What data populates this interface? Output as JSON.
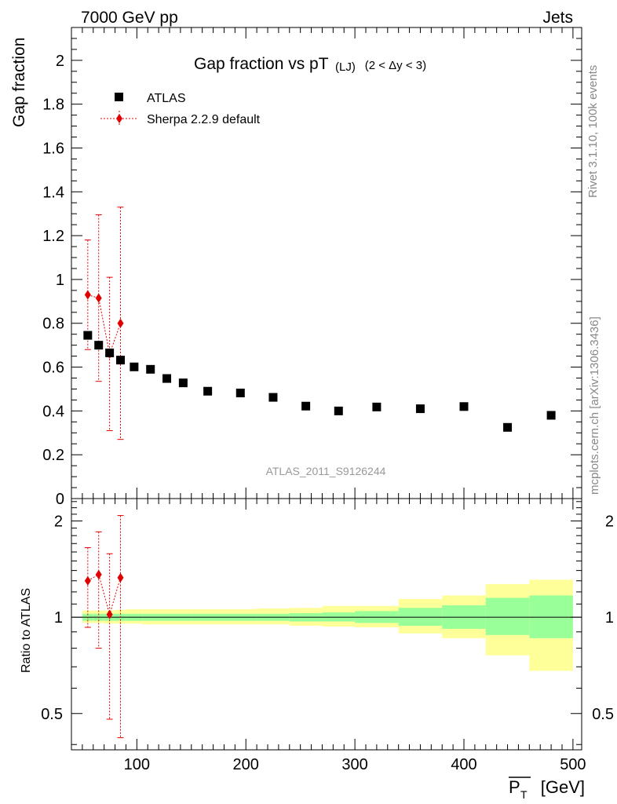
{
  "header": {
    "left": "7000 GeV pp",
    "right": "Jets"
  },
  "side_text": {
    "rivet": "Rivet 3.1.10,  100k events",
    "mcplots": "mcplots.cern.ch [arXiv:1306.3436]"
  },
  "chart_data": {
    "type": "scatter",
    "title": "Gap fraction vs pT",
    "title_sub": "(LJ)",
    "title_cut": "(2 < Δy < 3)",
    "ylabel": "Gap fraction",
    "ratio_ylabel": "Ratio to ATLAS",
    "xlabel": "P",
    "xlabel_sub": "T",
    "xlabel_unit": "[GeV]",
    "watermark": "ATLAS_2011_S9126244",
    "xlim": [
      40,
      508
    ],
    "ylim": [
      0,
      2.15
    ],
    "ratio_ylim": [
      0.385,
      2.35
    ],
    "ratio_log_scale": true,
    "x_ticks": [
      "100",
      "200",
      "300",
      "400",
      "500"
    ],
    "x_tick_values": [
      100,
      200,
      300,
      400,
      500
    ],
    "y_ticks": [
      "0",
      "0.2",
      "0.4",
      "0.6",
      "0.8",
      "1",
      "1.2",
      "1.4",
      "1.6",
      "1.8",
      "2"
    ],
    "y_tick_values": [
      0,
      0.2,
      0.4,
      0.6,
      0.8,
      1,
      1.2,
      1.4,
      1.6,
      1.8,
      2
    ],
    "ratio_ticks": [
      "0.5",
      "1",
      "2"
    ],
    "ratio_tick_values": [
      0.5,
      1,
      2
    ],
    "legend": {
      "placement": "top-left",
      "atlas_label": "ATLAS",
      "mc_label": "Sherpa 2.2.9 default"
    },
    "colors": {
      "data": "#000000",
      "mc": "#e00000",
      "band_inner": "#99ff99",
      "band_outer": "#ffff99"
    },
    "series": [
      {
        "name": "ATLAS",
        "x": [
          55,
          65,
          75,
          85,
          97.5,
          112.5,
          127.5,
          142.5,
          165,
          195,
          225,
          255,
          285,
          320,
          360,
          400,
          440,
          480
        ],
        "y": [
          0.745,
          0.7,
          0.665,
          0.632,
          0.601,
          0.59,
          0.548,
          0.528,
          0.49,
          0.482,
          0.462,
          0.422,
          0.4,
          0.418,
          0.41,
          0.42,
          0.325,
          0.38
        ]
      },
      {
        "name": "Sherpa 2.2.9 default",
        "x": [
          55,
          65,
          75,
          85
        ],
        "y": [
          0.93,
          0.915,
          0.66,
          0.8
        ],
        "yerr_low": [
          0.25,
          0.38,
          0.35,
          0.53
        ],
        "yerr_high": [
          0.25,
          0.38,
          0.35,
          0.53
        ]
      }
    ],
    "ratio": {
      "x": [
        55,
        65,
        75,
        85
      ],
      "y": [
        1.3,
        1.36,
        1.02,
        1.33
      ],
      "lo": [
        0.93,
        0.8,
        0.48,
        0.42
      ],
      "hi": [
        1.65,
        1.85,
        1.58,
        2.08
      ]
    },
    "uncertainty_band": {
      "edges": [
        50,
        60,
        70,
        80,
        90,
        105,
        120,
        135,
        150,
        180,
        210,
        240,
        270,
        300,
        340,
        380,
        420,
        460,
        500
      ],
      "inner_lo": [
        0.975,
        0.975,
        0.975,
        0.975,
        0.975,
        0.975,
        0.975,
        0.975,
        0.975,
        0.975,
        0.975,
        0.97,
        0.97,
        0.96,
        0.94,
        0.92,
        0.88,
        0.86
      ],
      "inner_hi": [
        1.025,
        1.025,
        1.025,
        1.025,
        1.025,
        1.025,
        1.025,
        1.025,
        1.025,
        1.025,
        1.025,
        1.03,
        1.035,
        1.045,
        1.07,
        1.09,
        1.15,
        1.17
      ],
      "outer_lo": [
        0.96,
        0.96,
        0.955,
        0.955,
        0.955,
        0.95,
        0.95,
        0.95,
        0.95,
        0.95,
        0.95,
        0.94,
        0.935,
        0.93,
        0.89,
        0.86,
        0.76,
        0.68
      ],
      "outer_hi": [
        1.05,
        1.05,
        1.05,
        1.055,
        1.06,
        1.06,
        1.06,
        1.06,
        1.06,
        1.06,
        1.065,
        1.07,
        1.085,
        1.085,
        1.14,
        1.17,
        1.27,
        1.31
      ]
    }
  }
}
